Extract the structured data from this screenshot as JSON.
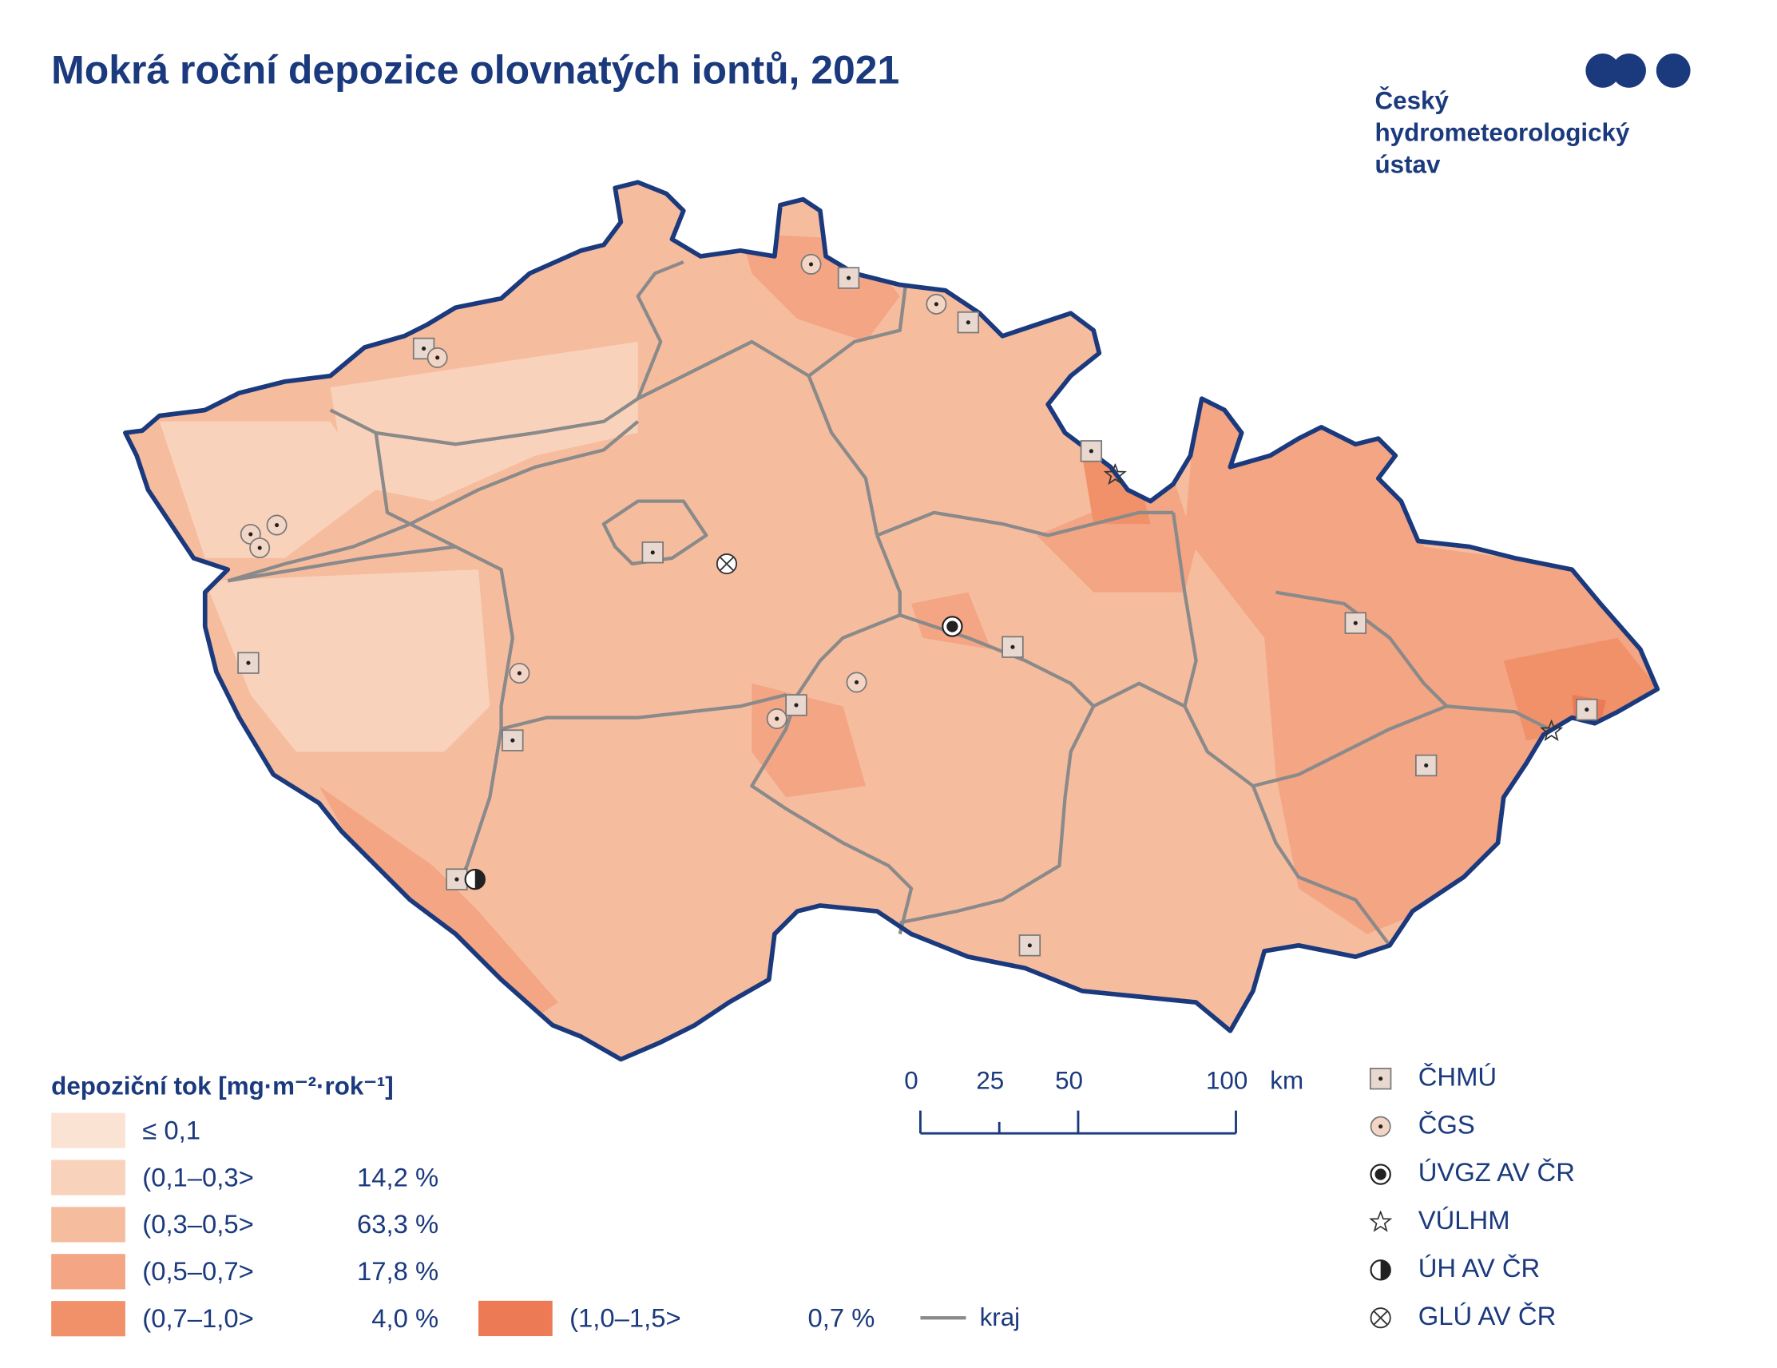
{
  "title": "Mokrá roční depozice olovnatých iontů, 2021",
  "logo": {
    "lines": [
      "Český",
      "hydrometeorologický",
      "ústav"
    ]
  },
  "legend": {
    "title": "depoziční tok [mg·m⁻²·rok⁻¹]",
    "classes": [
      {
        "label": "≤ 0,1",
        "color": "#fbe3d4"
      },
      {
        "label": "(0,1–0,3>",
        "share": "14,2 %",
        "color": "#f9d2bb"
      },
      {
        "label": "(0,3–0,5>",
        "share": "63,3 %",
        "color": "#f6bc9e"
      },
      {
        "label": "(0,5–0,7>",
        "share": "17,8 %",
        "color": "#f3a584"
      },
      {
        "label": "(0,7–1,0>",
        "share": "4,0 %",
        "color": "#f0916a"
      },
      {
        "label": "(1,0–1,5>",
        "share": "0,7 %",
        "color": "#ec7a55"
      }
    ],
    "kraj": "kraj"
  },
  "scale": {
    "ticks": [
      0,
      25,
      50,
      100
    ],
    "unit": "km"
  },
  "stations": [
    "ČHMÚ",
    "ČGS",
    "ÚVGZ AV ČR",
    "VÚLHM",
    "ÚH AV ČR",
    "GLÚ AV ČR"
  ]
}
